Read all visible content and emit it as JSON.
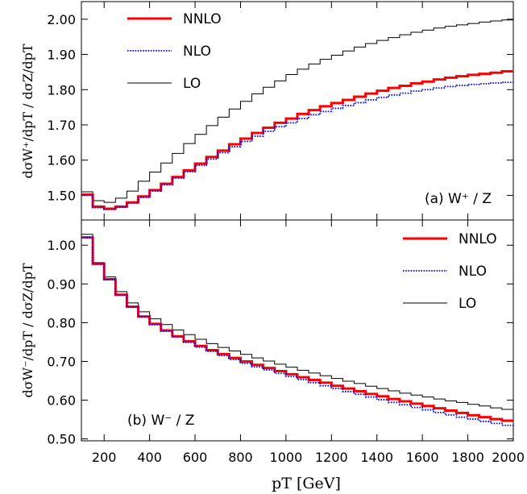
{
  "chart_data": [
    {
      "type": "line",
      "panel_label": "(a) W⁺ / Z",
      "ylabel": "dσW⁺/dpT / dσZ/dpT",
      "ylim": [
        1.43,
        2.05
      ],
      "yticks": [
        1.5,
        1.6,
        1.7,
        1.8,
        1.9,
        2.0
      ],
      "ytick_labels": [
        "1.50",
        "1.60",
        "1.70",
        "1.80",
        "1.90",
        "2.00"
      ],
      "legend_position": "top-left",
      "x": [
        100,
        150,
        200,
        250,
        300,
        350,
        400,
        450,
        500,
        550,
        600,
        650,
        700,
        750,
        800,
        850,
        900,
        950,
        1000,
        1050,
        1100,
        1150,
        1200,
        1250,
        1300,
        1350,
        1400,
        1450,
        1500,
        1550,
        1600,
        1650,
        1700,
        1750,
        1800,
        1850,
        1900,
        1950,
        2000
      ],
      "series": [
        {
          "name": "NNLO",
          "color": "#ff0000",
          "style": "solid-thick",
          "values": [
            1.502,
            1.468,
            1.462,
            1.468,
            1.48,
            1.497,
            1.515,
            1.533,
            1.552,
            1.571,
            1.59,
            1.609,
            1.627,
            1.645,
            1.661,
            1.677,
            1.692,
            1.706,
            1.718,
            1.731,
            1.742,
            1.753,
            1.762,
            1.771,
            1.78,
            1.789,
            1.797,
            1.805,
            1.811,
            1.818,
            1.823,
            1.829,
            1.834,
            1.838,
            1.842,
            1.845,
            1.848,
            1.852,
            1.855
          ]
        },
        {
          "name": "NLO",
          "color": "#0000ff",
          "style": "dotted",
          "values": [
            1.5,
            1.465,
            1.46,
            1.466,
            1.478,
            1.494,
            1.512,
            1.53,
            1.549,
            1.567,
            1.585,
            1.603,
            1.621,
            1.638,
            1.653,
            1.668,
            1.682,
            1.695,
            1.706,
            1.718,
            1.729,
            1.738,
            1.747,
            1.755,
            1.763,
            1.771,
            1.778,
            1.785,
            1.79,
            1.796,
            1.8,
            1.805,
            1.809,
            1.812,
            1.815,
            1.817,
            1.819,
            1.821,
            1.821
          ]
        },
        {
          "name": "LO",
          "color": "#000000",
          "style": "solid-thin",
          "values": [
            1.51,
            1.485,
            1.48,
            1.492,
            1.512,
            1.54,
            1.566,
            1.592,
            1.619,
            1.647,
            1.673,
            1.698,
            1.722,
            1.745,
            1.767,
            1.788,
            1.807,
            1.825,
            1.843,
            1.858,
            1.873,
            1.886,
            1.898,
            1.91,
            1.921,
            1.931,
            1.94,
            1.948,
            1.956,
            1.963,
            1.969,
            1.975,
            1.98,
            1.984,
            1.988,
            1.992,
            1.995,
            1.998,
            2.001
          ]
        }
      ]
    },
    {
      "type": "line",
      "panel_label": "(b) W⁻ / Z",
      "ylabel": "dσW⁻/dpT / dσZ/dpT",
      "ylim": [
        0.495,
        1.065
      ],
      "yticks": [
        0.5,
        0.6,
        0.7,
        0.8,
        0.9,
        1.0
      ],
      "ytick_labels": [
        "0.50",
        "0.60",
        "0.70",
        "0.80",
        "0.90",
        "1.00"
      ],
      "legend_position": "top-right",
      "x": [
        100,
        150,
        200,
        250,
        300,
        350,
        400,
        450,
        500,
        550,
        600,
        650,
        700,
        750,
        800,
        850,
        900,
        950,
        1000,
        1050,
        1100,
        1150,
        1200,
        1250,
        1300,
        1350,
        1400,
        1450,
        1500,
        1550,
        1600,
        1650,
        1700,
        1750,
        1800,
        1850,
        1900,
        1950,
        2000
      ],
      "series": [
        {
          "name": "NNLO",
          "color": "#ff0000",
          "style": "solid-thick",
          "values": [
            1.02,
            0.952,
            0.912,
            0.872,
            0.841,
            0.816,
            0.797,
            0.78,
            0.765,
            0.752,
            0.74,
            0.729,
            0.719,
            0.709,
            0.7,
            0.691,
            0.683,
            0.675,
            0.667,
            0.659,
            0.652,
            0.645,
            0.637,
            0.63,
            0.623,
            0.616,
            0.61,
            0.603,
            0.597,
            0.591,
            0.585,
            0.579,
            0.573,
            0.567,
            0.561,
            0.556,
            0.551,
            0.547,
            0.545
          ]
        },
        {
          "name": "NLO",
          "color": "#0000ff",
          "style": "dotted",
          "values": [
            1.02,
            0.952,
            0.911,
            0.871,
            0.84,
            0.815,
            0.795,
            0.778,
            0.763,
            0.749,
            0.737,
            0.726,
            0.715,
            0.705,
            0.695,
            0.686,
            0.678,
            0.669,
            0.661,
            0.653,
            0.645,
            0.637,
            0.63,
            0.622,
            0.615,
            0.608,
            0.601,
            0.594,
            0.588,
            0.581,
            0.575,
            0.568,
            0.562,
            0.556,
            0.551,
            0.545,
            0.54,
            0.535,
            0.531
          ]
        },
        {
          "name": "LO",
          "color": "#000000",
          "style": "solid-thin",
          "values": [
            1.028,
            0.955,
            0.918,
            0.88,
            0.851,
            0.828,
            0.81,
            0.795,
            0.781,
            0.769,
            0.757,
            0.746,
            0.736,
            0.727,
            0.718,
            0.709,
            0.701,
            0.693,
            0.685,
            0.677,
            0.67,
            0.663,
            0.656,
            0.649,
            0.643,
            0.636,
            0.63,
            0.624,
            0.618,
            0.613,
            0.608,
            0.603,
            0.598,
            0.594,
            0.589,
            0.585,
            0.58,
            0.576,
            0.582
          ]
        }
      ]
    }
  ],
  "xaxis": {
    "label": "pT [GeV]",
    "xlim": [
      100,
      2000
    ],
    "ticks": [
      200,
      400,
      600,
      800,
      1000,
      1200,
      1400,
      1600,
      1800,
      2000
    ],
    "tick_labels": [
      "200",
      "400",
      "600",
      "800",
      "1000",
      "1200",
      "1400",
      "1600",
      "1800",
      "2000"
    ]
  }
}
